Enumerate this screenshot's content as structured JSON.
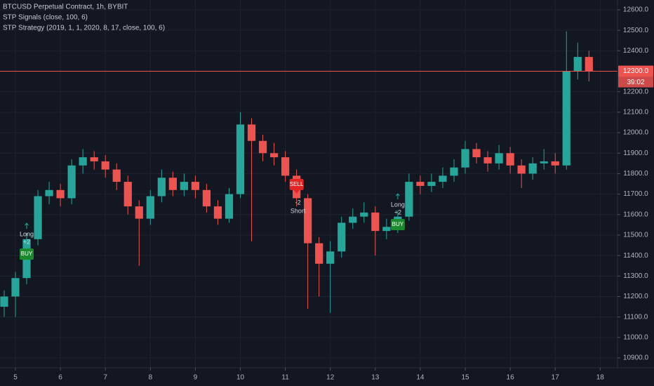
{
  "chart_data": {
    "type": "candlestick",
    "title": "BTCUSD Perpetual Contract, 1h, BYBIT",
    "indicators": [
      "STP Signals (close, 100, 6)",
      "STP Strategy (2019, 1, 1, 2020, 8, 17, close, 100, 6)"
    ],
    "up_color": "#26a69a",
    "down_color": "#ef5350",
    "x": [
      4.75,
      5.0,
      5.25,
      5.5,
      5.75,
      6.0,
      6.25,
      6.5,
      6.75,
      7.0,
      7.25,
      7.5,
      7.75,
      8.0,
      8.25,
      8.5,
      8.75,
      9.0,
      9.25,
      9.5,
      9.75,
      10.0,
      10.25,
      10.5,
      10.75,
      11.0,
      11.25,
      11.5,
      11.75,
      12.0,
      12.25,
      12.5,
      12.75,
      13.0,
      13.25,
      13.5,
      13.75,
      14.0,
      14.25,
      14.5,
      14.75,
      15.0,
      15.25,
      15.5,
      15.75,
      16.0,
      16.25,
      16.5,
      16.75,
      17.0,
      17.25,
      17.5,
      17.75
    ],
    "open": [
      11150,
      11200,
      11290,
      11480,
      11690,
      11720,
      11680,
      11840,
      11880,
      11860,
      11820,
      11760,
      11640,
      11580,
      11690,
      11780,
      11720,
      11760,
      11720,
      11640,
      11580,
      11700,
      12040,
      11960,
      11900,
      11880,
      11790,
      11680,
      11460,
      11360,
      11420,
      11560,
      11590,
      11610,
      11520,
      11540,
      11590,
      11760,
      11740,
      11760,
      11790,
      11830,
      11920,
      11880,
      11850,
      11900,
      11840,
      11800,
      11850,
      11860,
      11840,
      12300,
      12370
    ],
    "high": [
      11230,
      11320,
      11510,
      11720,
      11760,
      11750,
      11870,
      11920,
      11910,
      11890,
      11850,
      11790,
      11670,
      11720,
      11820,
      11810,
      11800,
      11790,
      11750,
      11670,
      11730,
      12100,
      12070,
      11990,
      11950,
      11910,
      11820,
      11700,
      11490,
      11470,
      11590,
      11630,
      11660,
      11640,
      11580,
      11620,
      11800,
      11790,
      11800,
      11830,
      11870,
      11960,
      11950,
      11910,
      11940,
      11930,
      11870,
      11880,
      11920,
      11900,
      12495,
      12440,
      12400
    ],
    "low": [
      11100,
      11100,
      11260,
      11450,
      11650,
      11640,
      11650,
      11800,
      11820,
      11780,
      11720,
      11600,
      11350,
      11550,
      11660,
      11690,
      11690,
      11680,
      11610,
      11550,
      11560,
      11680,
      11470,
      11860,
      11840,
      11760,
      11640,
      11140,
      11200,
      11120,
      11390,
      11530,
      11560,
      11400,
      11480,
      11510,
      11570,
      11700,
      11710,
      11730,
      11760,
      11800,
      11850,
      11810,
      11820,
      11800,
      11730,
      11770,
      11820,
      11800,
      11820,
      12260,
      12250
    ],
    "close": [
      11200,
      11290,
      11480,
      11690,
      11720,
      11680,
      11840,
      11880,
      11860,
      11820,
      11760,
      11640,
      11580,
      11690,
      11780,
      11720,
      11760,
      11720,
      11640,
      11580,
      11700,
      12040,
      11960,
      11900,
      11880,
      11790,
      11680,
      11460,
      11360,
      11420,
      11560,
      11590,
      11610,
      11520,
      11540,
      11590,
      11760,
      11740,
      11760,
      11790,
      11830,
      11920,
      11880,
      11850,
      11900,
      11840,
      11800,
      11850,
      11860,
      11840,
      12300,
      12370,
      12300
    ],
    "xlim": [
      4.657,
      18.385
    ],
    "xticks": [
      5,
      6,
      7,
      8,
      9,
      10,
      11,
      12,
      13,
      14,
      15,
      16,
      17,
      18
    ],
    "ylim": [
      10852,
      12648
    ],
    "yticks": [
      {
        "value": 10900,
        "label": "10900.0"
      },
      {
        "value": 11000,
        "label": "11000.0"
      },
      {
        "value": 11100,
        "label": "11100.0"
      },
      {
        "value": 11200,
        "label": "11200.0"
      },
      {
        "value": 11300,
        "label": "11300.0"
      },
      {
        "value": 11400,
        "label": "11400.0"
      },
      {
        "value": 11500,
        "label": "11500.0"
      },
      {
        "value": 11600,
        "label": "11600.0"
      },
      {
        "value": 11700,
        "label": "11700.0"
      },
      {
        "value": 11800,
        "label": "11800.0"
      },
      {
        "value": 11900,
        "label": "11900.0"
      },
      {
        "value": 12000,
        "label": "12000.0"
      },
      {
        "value": 12100,
        "label": "12100.0"
      },
      {
        "value": 12200,
        "label": "12200.0"
      },
      {
        "value": 12400,
        "label": "12400.0"
      },
      {
        "value": 12500,
        "label": "12500.0"
      },
      {
        "value": 12600,
        "label": "12600.0"
      }
    ],
    "grid": true,
    "last_price": {
      "value": 12300,
      "label": "12300.0",
      "color": "#ef5350"
    },
    "countdown": "39:02",
    "signals": [
      {
        "kind": "buy",
        "x": 5.25,
        "price": 11407,
        "label": "BUY",
        "texts": [
          "Long",
          "+2"
        ],
        "color": "#1b8a2e"
      },
      {
        "kind": "sell",
        "x": 11.25,
        "price": 11747,
        "label": "SELL",
        "texts": [
          "-2",
          "Short"
        ],
        "color": "#e52323"
      },
      {
        "kind": "buy",
        "x": 13.5,
        "price": 11551,
        "label": "BUY",
        "texts": [
          "Long",
          "+2"
        ],
        "color": "#1b8a2e"
      }
    ]
  }
}
